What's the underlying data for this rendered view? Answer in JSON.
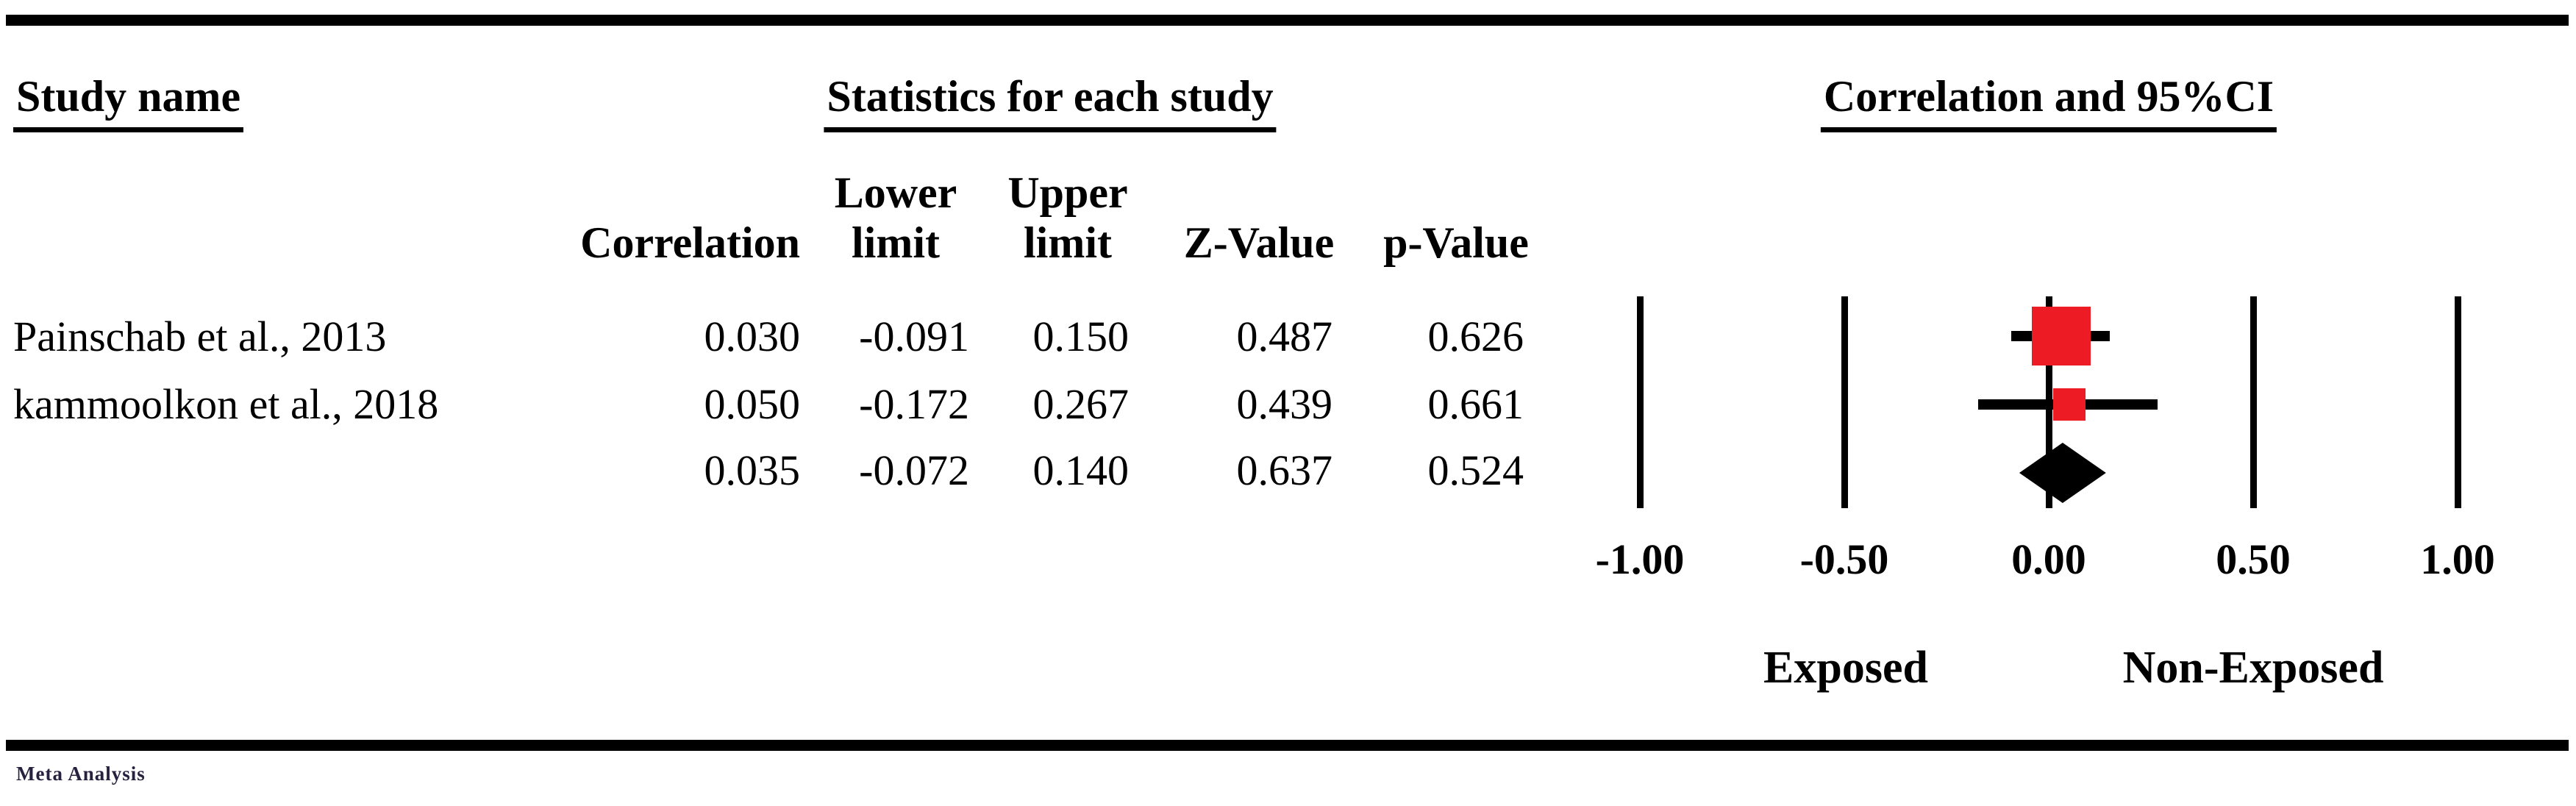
{
  "header": {
    "study_name": "Study name",
    "statistics": "Statistics for each study",
    "correlation_ci": "Correlation and 95%CI"
  },
  "columns": {
    "correlation": "Correlation",
    "lower_line1": "Lower",
    "lower_line2": "limit",
    "upper_line1": "Upper",
    "upper_line2": "limit",
    "z_value": "Z-Value",
    "p_value": "p-Value"
  },
  "rows": [
    {
      "study": "Painschab et al., 2013",
      "correlation": "0.030",
      "lower": "-0.091",
      "upper": "0.150",
      "z": "0.487",
      "p": "0.626"
    },
    {
      "study": "kammoolkon et al., 2018",
      "correlation": "0.050",
      "lower": "-0.172",
      "upper": "0.267",
      "z": "0.439",
      "p": "0.661"
    },
    {
      "study": "",
      "correlation": "0.035",
      "lower": "-0.072",
      "upper": "0.140",
      "z": "0.637",
      "p": "0.524"
    }
  ],
  "footer": {
    "exposed": "Exposed",
    "non_exposed": "Non-Exposed",
    "watermark": "Meta Analysis"
  },
  "colors": {
    "marker_red": "#ED1C24",
    "black": "#000000"
  },
  "chart_data": {
    "type": "forest",
    "title": "Correlation and 95%CI",
    "x_axis": {
      "ticks": [
        -1.0,
        -0.5,
        0.0,
        0.5,
        1.0
      ],
      "tick_labels": [
        "-1.00",
        "-0.50",
        "0.00",
        "0.50",
        "1.00"
      ],
      "range": [
        -1.0,
        1.0
      ],
      "left_group_label": "Exposed",
      "right_group_label": "Non-Exposed"
    },
    "studies": [
      {
        "name": "Painschab et al., 2013",
        "correlation": 0.03,
        "lower": -0.091,
        "upper": 0.15,
        "z": 0.487,
        "p": 0.626,
        "marker": "square",
        "relative_weight": "large"
      },
      {
        "name": "kammoolkon et al., 2018",
        "correlation": 0.05,
        "lower": -0.172,
        "upper": 0.267,
        "z": 0.439,
        "p": 0.661,
        "marker": "square",
        "relative_weight": "small"
      }
    ],
    "summary": {
      "correlation": 0.035,
      "lower": -0.072,
      "upper": 0.14,
      "z": 0.637,
      "p": 0.524,
      "marker": "diamond"
    }
  }
}
